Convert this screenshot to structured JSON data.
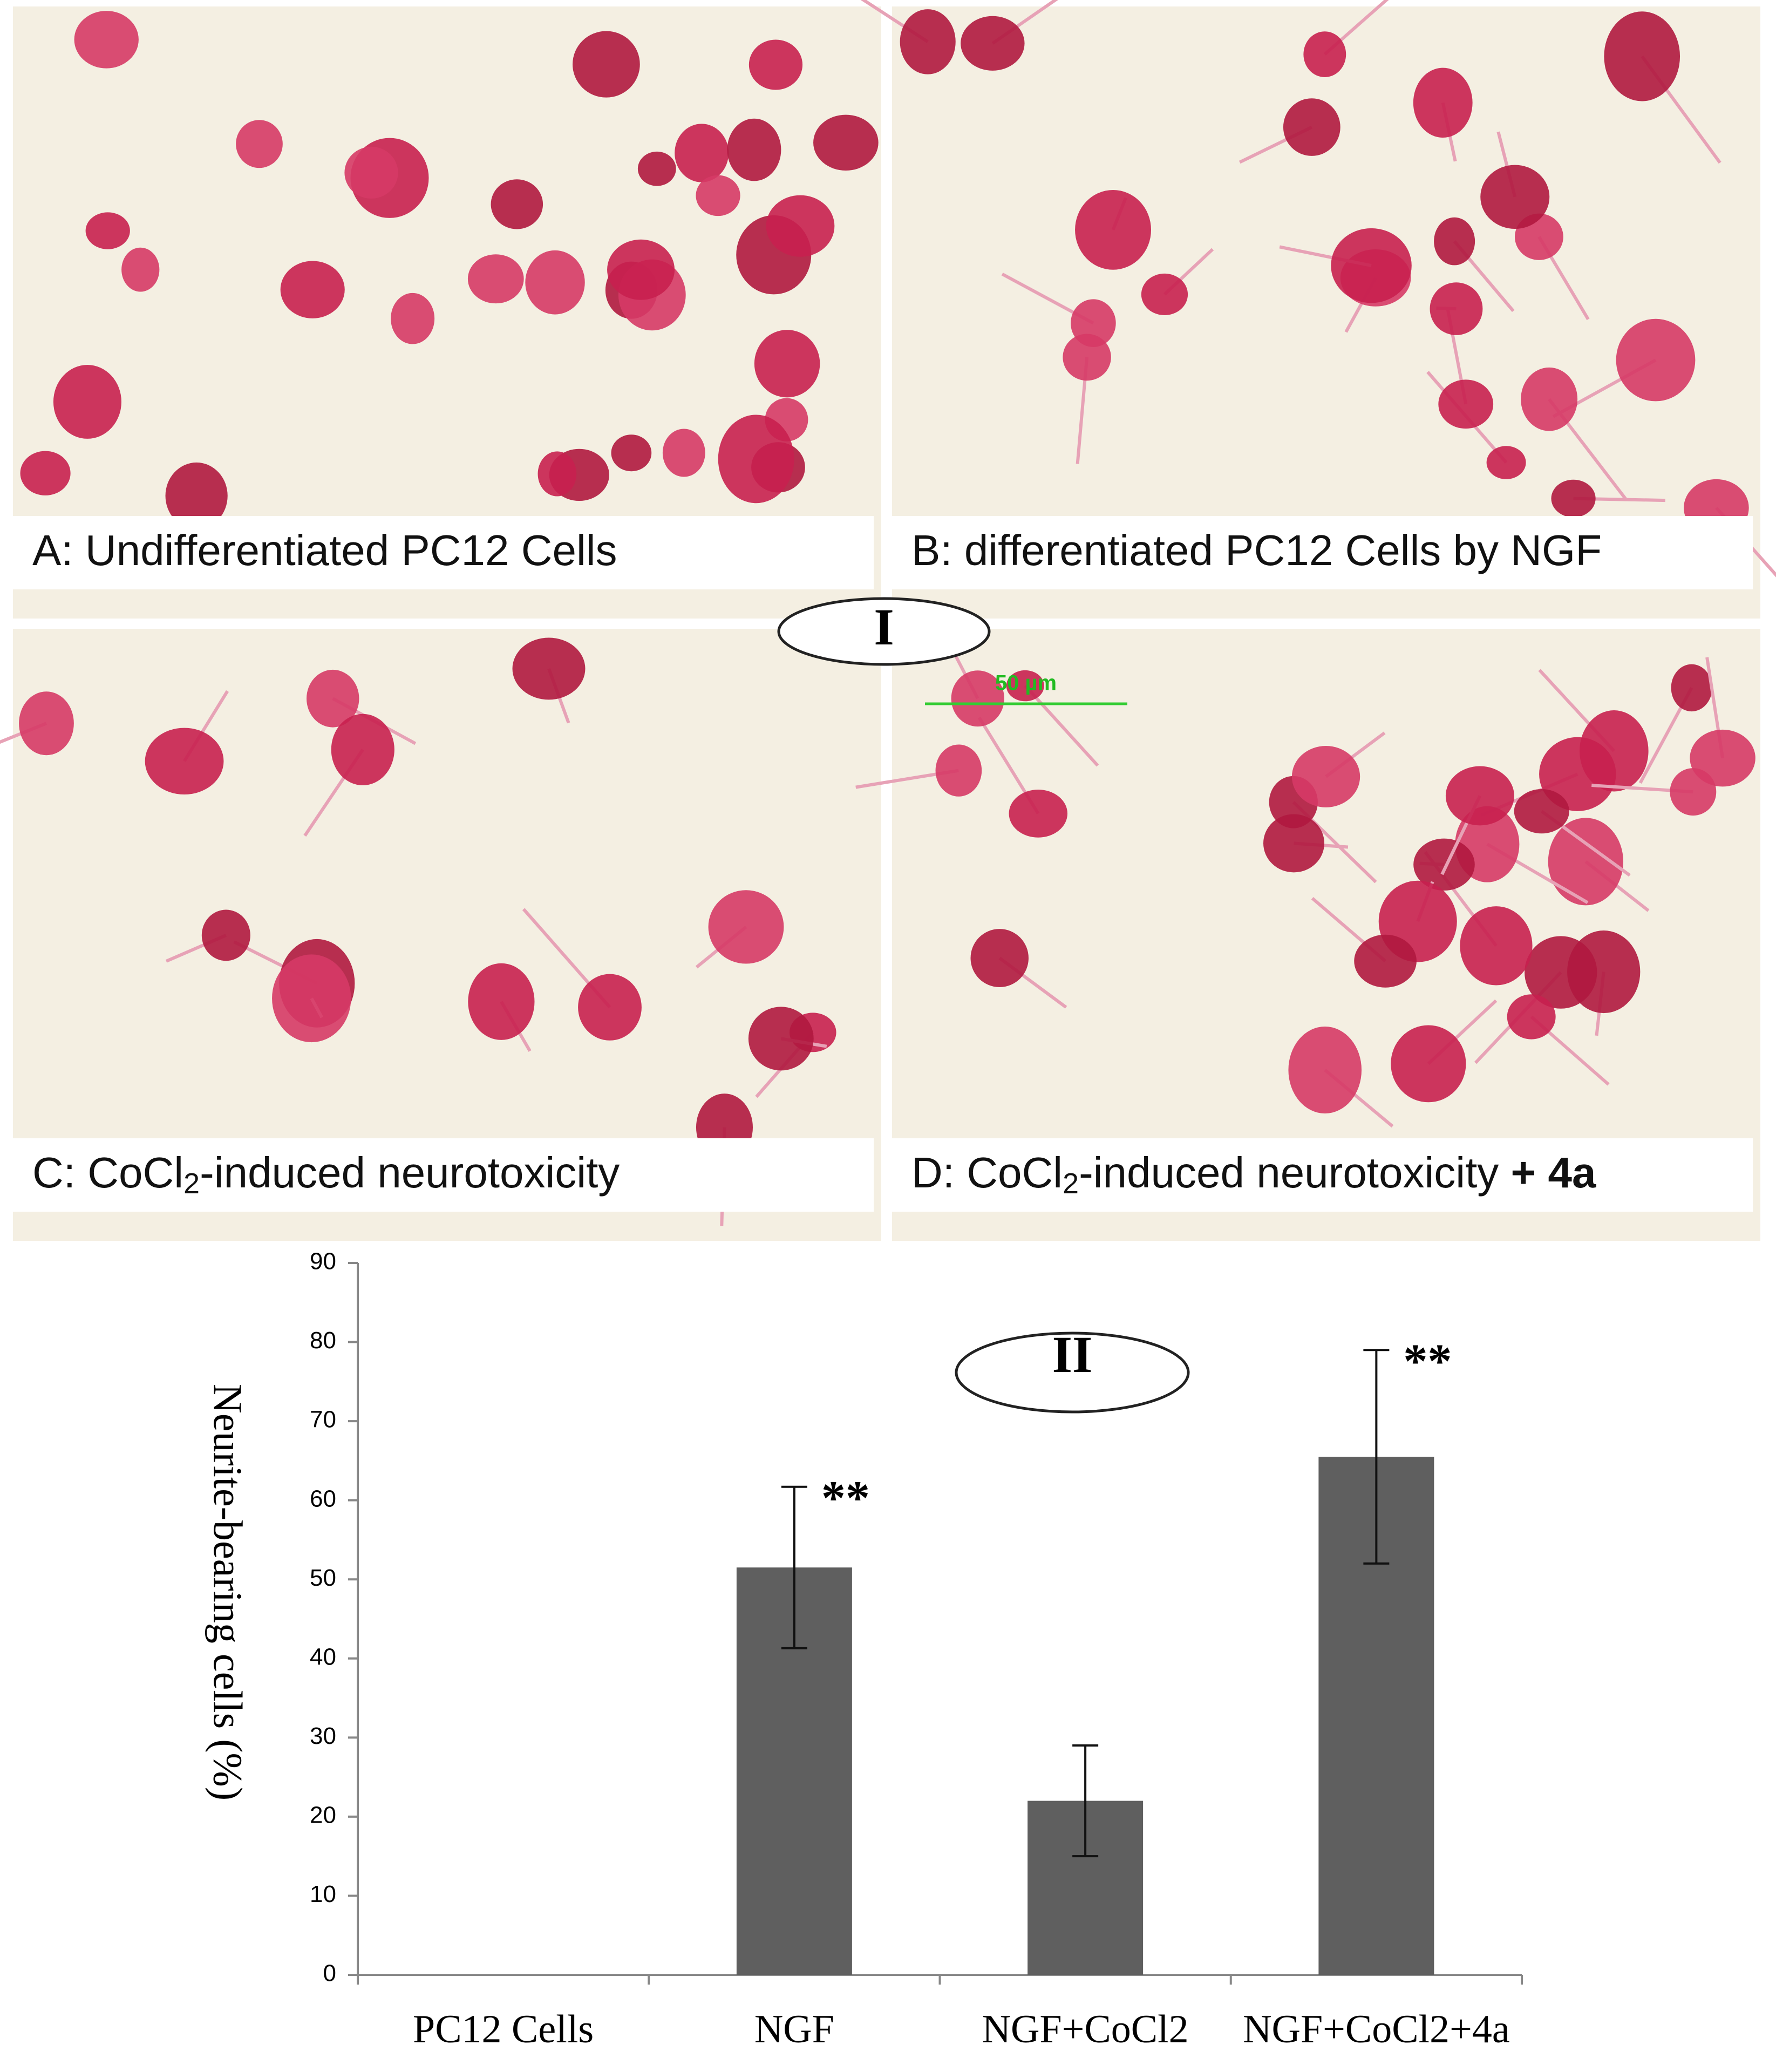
{
  "panels": [
    {
      "caption": {
        "text": "A: Undifferentiated PC12 Cells"
      }
    },
    {
      "caption": {
        "text": "B: differentiated PC12 Cells by NGF"
      }
    },
    {
      "caption": {
        "prefix": "C: CoCl",
        "sub": "2",
        "suffix": "-induced neurotoxicity"
      }
    },
    {
      "caption": {
        "prefix": "D: CoCl",
        "sub": "2",
        "suffix": "-induced neurotoxicity ",
        "bold": "+ 4a"
      }
    }
  ],
  "figure_labels": {
    "part1": "I",
    "part2": "II",
    "scale_bar": "50 µm"
  },
  "chart_data": {
    "type": "bar",
    "y_label": "Neurite-bearing cells (%)",
    "categories": [
      "PC12 Cells",
      "NGF",
      "NGF+CoCl2",
      "NGF+CoCl2+4a"
    ],
    "values": [
      0,
      51.5,
      22,
      65.5
    ],
    "errors": [
      0,
      10.2,
      7,
      13.5
    ],
    "color": "#5f5f5f",
    "annotations": [
      {
        "category": 1,
        "text": "**"
      },
      {
        "category": 3,
        "text": "**"
      }
    ],
    "ylim": [
      0,
      90
    ],
    "yticks": [
      0,
      10,
      20,
      30,
      40,
      50,
      60,
      70,
      80,
      90
    ]
  }
}
